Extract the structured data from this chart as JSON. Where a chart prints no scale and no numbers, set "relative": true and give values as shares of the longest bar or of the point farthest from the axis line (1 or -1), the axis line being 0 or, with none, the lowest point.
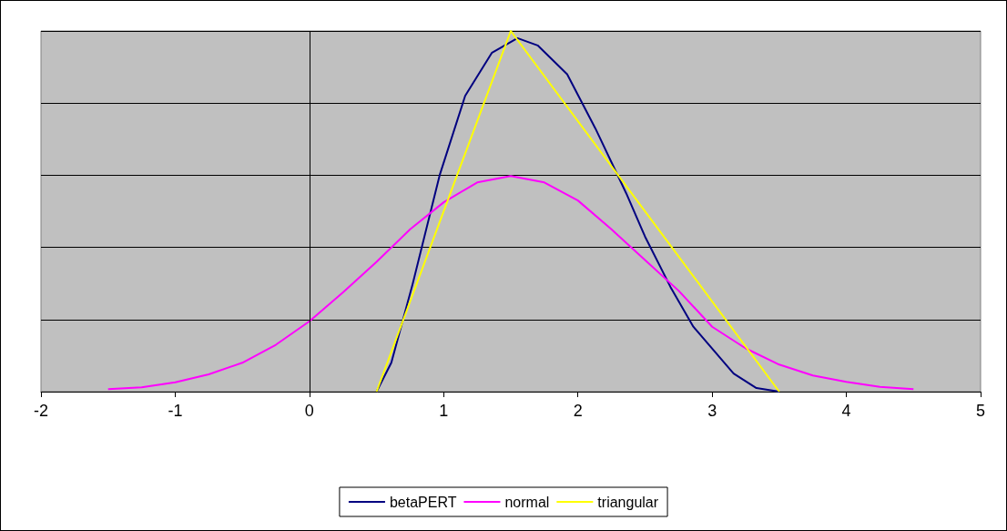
{
  "chart_data": {
    "type": "line",
    "relative": true,
    "xlim": [
      -2,
      5
    ],
    "xticks": [
      -2,
      -1,
      0,
      1,
      2,
      3,
      4,
      5
    ],
    "grid": "y",
    "ref_lines": [
      {
        "axis": "x",
        "value": 0,
        "color": "#000000"
      }
    ],
    "legend": "bottom",
    "marker": "none",
    "line_style": "solid",
    "series": [
      {
        "name": "betaPERT",
        "color": "#000080",
        "x": [
          0.5,
          0.61,
          0.77,
          0.97,
          1.16,
          1.36,
          1.55,
          1.7,
          1.92,
          2.13,
          2.36,
          2.5,
          2.69,
          2.86,
          3.16,
          3.33,
          3.5
        ],
        "values": [
          0,
          0.08,
          0.3,
          0.6,
          0.82,
          0.94,
          0.98,
          0.96,
          0.88,
          0.73,
          0.55,
          0.43,
          0.29,
          0.18,
          0.05,
          0.01,
          0
        ]
      },
      {
        "name": "normal",
        "color": "#ff00ff",
        "x": [
          -1.5,
          -1.25,
          -1,
          -0.75,
          -0.5,
          -0.25,
          0,
          0.25,
          0.5,
          0.75,
          1,
          1.25,
          1.5,
          1.75,
          2,
          2.25,
          2.5,
          2.75,
          3,
          3.25,
          3.5,
          3.75,
          4,
          4.25,
          4.5
        ],
        "values": [
          0.007,
          0.012,
          0.026,
          0.048,
          0.08,
          0.13,
          0.195,
          0.275,
          0.36,
          0.45,
          0.525,
          0.58,
          0.598,
          0.58,
          0.53,
          0.45,
          0.365,
          0.28,
          0.18,
          0.12,
          0.075,
          0.045,
          0.027,
          0.013,
          0.007
        ]
      },
      {
        "name": "triangular",
        "color": "#ffff00",
        "x": [
          0.5,
          1.5,
          3.5
        ],
        "values": [
          0,
          1,
          0
        ]
      }
    ]
  }
}
